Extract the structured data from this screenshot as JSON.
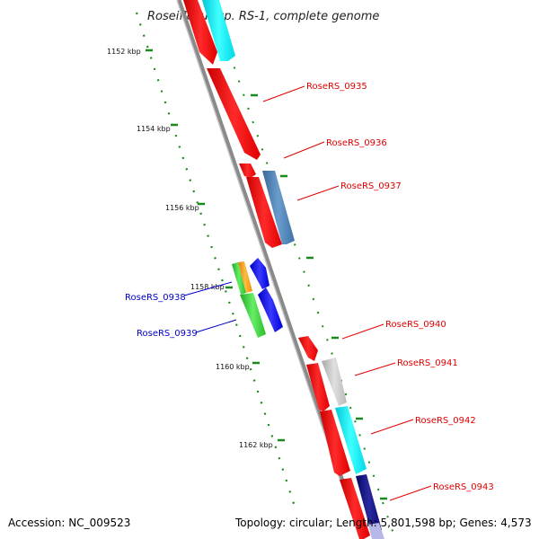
{
  "title": "Roseiflexus sp. RS-1, complete genome",
  "scale_labels": [
    "1152 kbp",
    "1154 kbp",
    "1156 kbp",
    "1158 kbp",
    "1160 kbp",
    "1162 kbp"
  ],
  "gene_labels": [
    {
      "text": "RoseRS_0935",
      "color": "#e00000"
    },
    {
      "text": "RoseRS_0936",
      "color": "#e00000"
    },
    {
      "text": "RoseRS_0937",
      "color": "#e00000"
    },
    {
      "text": "RoseRS_0938",
      "color": "#0000c8"
    },
    {
      "text": "RoseRS_0939",
      "color": "#0000c8"
    },
    {
      "text": "RoseRS_0940",
      "color": "#e00000"
    },
    {
      "text": "RoseRS_0941",
      "color": "#e00000"
    },
    {
      "text": "RoseRS_0942",
      "color": "#e00000"
    },
    {
      "text": "RoseRS_0943",
      "color": "#e00000"
    }
  ],
  "footer": {
    "accession": "Accession: NC_009523",
    "topology": "Topology: circular; Length: 5,801,598 bp; Genes: 4,573"
  },
  "colors": {
    "backbone": "#8a8a8a",
    "gene_red": "#ff1010",
    "gene_cyan": "#00f0f0",
    "gene_steelblue": "#4a7fb5",
    "gene_green": "#33cc33",
    "gene_orange": "#ff9900",
    "gene_blue": "#0000ee",
    "gene_gray": "#c0c0c0",
    "gene_navy": "#0a0a7a",
    "scale_dots": "#1a8a1a"
  }
}
